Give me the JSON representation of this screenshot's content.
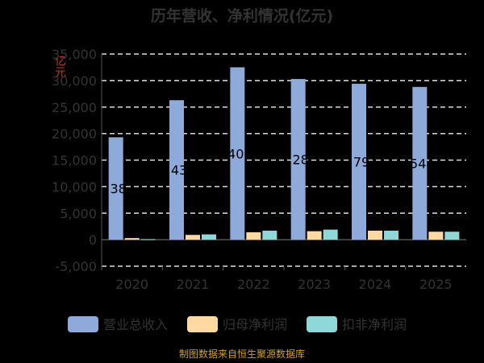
{
  "chart_data": {
    "type": "bar",
    "title": "历年营收、净利情况(亿元)",
    "ylabel": "亿元",
    "xlabel": "",
    "categories": [
      "2020",
      "2021",
      "2022",
      "2023",
      "2024",
      "2025"
    ],
    "series": [
      {
        "name": "营业总收入",
        "color": "#8eaadb",
        "values": [
          19300,
          26300,
          32500,
          30300,
          29400,
          28800
        ]
      },
      {
        "name": "归母净利润",
        "color": "#ffd9a0",
        "values": [
          300,
          900,
          1400,
          1600,
          1700,
          1500
        ]
      },
      {
        "name": "扣非净利润",
        "color": "#8fd8d8",
        "values": [
          100,
          1000,
          1700,
          1900,
          1700,
          1500
        ]
      }
    ],
    "data_labels": [
      "38",
      "43",
      "409",
      "28",
      "79",
      "544"
    ],
    "ylim": [
      -5000,
      35000
    ],
    "yticks": [
      "-5,000",
      "0",
      "5,000",
      "10,000",
      "15,000",
      "20,000",
      "25,000",
      "30,000",
      "35,000"
    ],
    "grid": true,
    "legend_position": "bottom"
  },
  "footer": "制图数据来自恒生聚源数据库"
}
